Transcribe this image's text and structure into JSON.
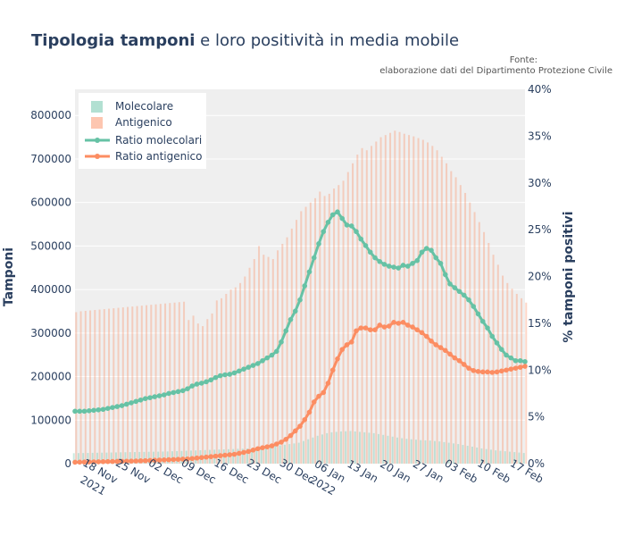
{
  "chart_data": {
    "type": "bar",
    "title": {
      "bold": "Tipologia tamponi",
      "rest": " e loro positività in media mobile"
    },
    "source": {
      "line1": "Fonte:",
      "line2": "elaborazione dati del Dipartimento Protezione Civile"
    },
    "ylabel_left": "Tamponi",
    "ylabel_right": "% tamponi positivi",
    "ylim_left": [
      0,
      860000
    ],
    "ylim_right": [
      0,
      40
    ],
    "yticks_left": [
      "0",
      "100000",
      "200000",
      "300000",
      "400000",
      "500000",
      "600000",
      "700000",
      "800000"
    ],
    "yticks_right": [
      "0%",
      "5%",
      "10%",
      "15%",
      "20%",
      "25%",
      "30%",
      "35%",
      "40%"
    ],
    "xticks": [
      {
        "day": 5,
        "label": "18 Nov",
        "sub": "2021"
      },
      {
        "day": 12,
        "label": "25 Nov"
      },
      {
        "day": 19,
        "label": "02 Dec"
      },
      {
        "day": 26,
        "label": "09 Dec"
      },
      {
        "day": 33,
        "label": "16 Dec"
      },
      {
        "day": 40,
        "label": "23 Dec"
      },
      {
        "day": 47,
        "label": "30 Dec"
      },
      {
        "day": 54,
        "label": "06 Jan",
        "sub": "2022"
      },
      {
        "day": 61,
        "label": "13 Jan"
      },
      {
        "day": 68,
        "label": "20 Jan"
      },
      {
        "day": 75,
        "label": "27 Jan"
      },
      {
        "day": 82,
        "label": "03 Feb"
      },
      {
        "day": 89,
        "label": "10 Feb"
      },
      {
        "day": 96,
        "label": "17 Feb"
      }
    ],
    "date_range": {
      "start": "2021-11-13",
      "end": "2022-02-17"
    },
    "grid": true,
    "legend_position": "top-left",
    "colors": {
      "molecolare": "#66c2a5",
      "antigenico": "#fc8d62",
      "plot_bg": "#efefef"
    },
    "series": [
      {
        "name": "Molecolare",
        "kind": "bar",
        "values": [
          24000,
          24200,
          24400,
          24600,
          24800,
          25000,
          25200,
          25400,
          25600,
          25800,
          26000,
          26200,
          26400,
          26600,
          26800,
          27000,
          27200,
          27400,
          27600,
          27800,
          28000,
          28400,
          28800,
          29200,
          29600,
          30000,
          30400,
          30800,
          31200,
          31600,
          32000,
          32400,
          32800,
          33200,
          33600,
          34000,
          34400,
          34800,
          35200,
          35600,
          36000,
          37500,
          39000,
          40500,
          42000,
          43500,
          45000,
          46500,
          48000,
          52000,
          56000,
          60000,
          64000,
          67000,
          70000,
          72000,
          73000,
          74000,
          74500,
          75000,
          74000,
          73000,
          72000,
          71000,
          70000,
          68000,
          66000,
          64000,
          62000,
          60000,
          58500,
          57000,
          56000,
          55000,
          54000,
          53500,
          53000,
          52000,
          51000,
          49500,
          48000,
          46500,
          45000,
          43000,
          41000,
          39000,
          37000,
          35000,
          33500,
          32000,
          30500,
          29500,
          28500,
          27500,
          26500,
          25500,
          24500
        ]
      },
      {
        "name": "Antigenico",
        "kind": "bar",
        "values": [
          348000,
          350000,
          351000,
          352000,
          353000,
          354000,
          355000,
          356000,
          357000,
          358000,
          359000,
          360000,
          361000,
          362000,
          363000,
          364000,
          365000,
          366000,
          367000,
          368000,
          369000,
          370000,
          371000,
          372000,
          330000,
          340000,
          322000,
          316000,
          332000,
          345000,
          375000,
          380000,
          390000,
          400000,
          405000,
          415000,
          430000,
          450000,
          470000,
          500000,
          480000,
          475000,
          470000,
          490000,
          505000,
          520000,
          540000,
          560000,
          580000,
          590000,
          600000,
          610000,
          625000,
          615000,
          620000,
          632000,
          640000,
          650000,
          670000,
          690000,
          710000,
          725000,
          720000,
          730000,
          740000,
          750000,
          755000,
          760000,
          765000,
          762000,
          758000,
          755000,
          752000,
          748000,
          744000,
          738000,
          730000,
          720000,
          705000,
          690000,
          672000,
          658000,
          640000,
          622000,
          600000,
          578000,
          555000,
          532000,
          507000,
          480000,
          457000,
          432000,
          415000,
          402000,
          390000,
          380000,
          370000
        ]
      },
      {
        "name": "Ratio molecolari",
        "kind": "line",
        "values": [
          5.6,
          5.6,
          5.6,
          5.65,
          5.7,
          5.75,
          5.8,
          5.9,
          6.0,
          6.1,
          6.2,
          6.35,
          6.5,
          6.65,
          6.8,
          6.95,
          7.05,
          7.15,
          7.25,
          7.35,
          7.5,
          7.6,
          7.7,
          7.8,
          8.0,
          8.3,
          8.5,
          8.6,
          8.75,
          8.95,
          9.2,
          9.4,
          9.5,
          9.55,
          9.7,
          9.9,
          10.1,
          10.3,
          10.5,
          10.7,
          11.0,
          11.3,
          11.6,
          12.0,
          13.0,
          14.2,
          15.4,
          16.3,
          17.5,
          19.0,
          20.5,
          22.0,
          23.5,
          24.8,
          25.8,
          26.6,
          26.9,
          26.2,
          25.5,
          25.4,
          24.8,
          24.0,
          23.3,
          22.6,
          22.0,
          21.6,
          21.3,
          21.1,
          21.0,
          20.9,
          21.2,
          21.1,
          21.4,
          21.7,
          22.6,
          23.0,
          22.8,
          22.0,
          21.4,
          20.2,
          19.2,
          18.8,
          18.4,
          18.0,
          17.5,
          16.8,
          16.0,
          15.2,
          14.5,
          13.6,
          12.9,
          12.2,
          11.6,
          11.3,
          11.0,
          11.0,
          10.9
        ]
      },
      {
        "name": "Ratio antigenico",
        "kind": "line",
        "values": [
          0.15,
          0.16,
          0.17,
          0.18,
          0.19,
          0.2,
          0.21,
          0.22,
          0.23,
          0.24,
          0.25,
          0.26,
          0.27,
          0.28,
          0.3,
          0.32,
          0.34,
          0.36,
          0.38,
          0.4,
          0.42,
          0.44,
          0.46,
          0.48,
          0.5,
          0.55,
          0.6,
          0.65,
          0.7,
          0.75,
          0.8,
          0.85,
          0.9,
          0.95,
          1.0,
          1.1,
          1.2,
          1.3,
          1.45,
          1.6,
          1.7,
          1.8,
          1.9,
          2.1,
          2.3,
          2.6,
          3.0,
          3.5,
          4.0,
          4.7,
          5.5,
          6.6,
          7.2,
          7.6,
          8.6,
          10.0,
          11.2,
          12.2,
          12.7,
          13.0,
          14.2,
          14.5,
          14.5,
          14.3,
          14.3,
          14.8,
          14.6,
          14.7,
          15.1,
          15.0,
          15.1,
          14.8,
          14.6,
          14.3,
          14.0,
          13.6,
          13.1,
          12.7,
          12.4,
          12.1,
          11.7,
          11.3,
          11.0,
          10.6,
          10.2,
          9.95,
          9.85,
          9.8,
          9.8,
          9.75,
          9.8,
          9.9,
          10.0,
          10.1,
          10.2,
          10.3,
          10.4
        ]
      }
    ]
  }
}
